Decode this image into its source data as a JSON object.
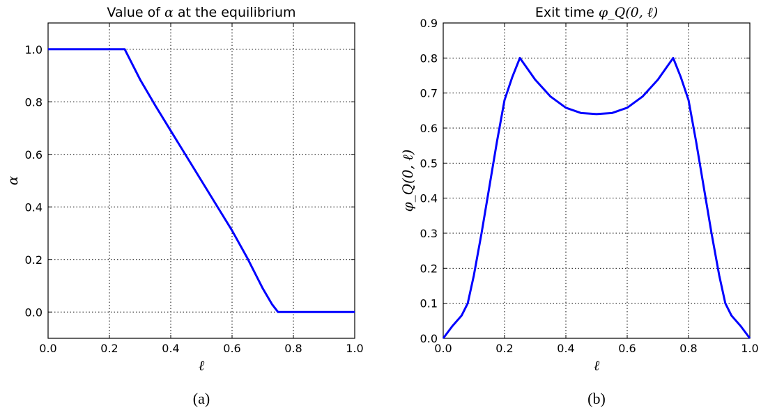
{
  "chart_data": [
    {
      "type": "line",
      "title_prefix": "Value of ",
      "title_math": "α",
      "title_suffix": " at the equilibrium",
      "xlabel": "ℓ",
      "ylabel": "α",
      "caption": "(a)",
      "xlim": [
        0.0,
        1.0
      ],
      "ylim": [
        -0.1,
        1.1
      ],
      "xticks": [
        "0.0",
        "0.2",
        "0.4",
        "0.6",
        "0.8",
        "1.0"
      ],
      "yticks": [
        "0.0",
        "0.2",
        "0.4",
        "0.6",
        "0.8",
        "1.0"
      ],
      "grid": true,
      "line_color": "#0000ff",
      "x": [
        0.0,
        0.1,
        0.2,
        0.25,
        0.3,
        0.35,
        0.4,
        0.45,
        0.5,
        0.55,
        0.6,
        0.65,
        0.7,
        0.73,
        0.75,
        0.8,
        0.9,
        1.0
      ],
      "y": [
        1.0,
        1.0,
        1.0,
        1.0,
        0.885,
        0.785,
        0.69,
        0.595,
        0.5,
        0.405,
        0.31,
        0.205,
        0.09,
        0.03,
        0.0,
        0.0,
        0.0,
        0.0
      ]
    },
    {
      "type": "line",
      "title_prefix": "Exit time ",
      "title_math": "φ_Q(0, ℓ)",
      "title_suffix": "",
      "xlabel": "ℓ",
      "ylabel": "φ_Q(0, ℓ)",
      "caption": "(b)",
      "xlim": [
        0.0,
        1.0
      ],
      "ylim": [
        0.0,
        0.9
      ],
      "xticks": [
        "0.0",
        "0.2",
        "0.4",
        "0.6",
        "0.8",
        "1.0"
      ],
      "yticks": [
        "0.0",
        "0.1",
        "0.2",
        "0.3",
        "0.4",
        "0.5",
        "0.6",
        "0.7",
        "0.8",
        "0.9"
      ],
      "grid": true,
      "line_color": "#0000ff",
      "x": [
        0.0,
        0.03,
        0.06,
        0.08,
        0.1,
        0.125,
        0.15,
        0.175,
        0.2,
        0.225,
        0.25,
        0.3,
        0.35,
        0.4,
        0.45,
        0.5,
        0.55,
        0.6,
        0.65,
        0.7,
        0.75,
        0.775,
        0.8,
        0.825,
        0.85,
        0.875,
        0.9,
        0.92,
        0.94,
        0.97,
        1.0
      ],
      "y": [
        0.0,
        0.035,
        0.065,
        0.1,
        0.18,
        0.3,
        0.43,
        0.56,
        0.68,
        0.745,
        0.8,
        0.738,
        0.69,
        0.658,
        0.643,
        0.64,
        0.643,
        0.658,
        0.69,
        0.738,
        0.8,
        0.745,
        0.68,
        0.56,
        0.43,
        0.3,
        0.18,
        0.1,
        0.065,
        0.035,
        0.0
      ]
    }
  ]
}
